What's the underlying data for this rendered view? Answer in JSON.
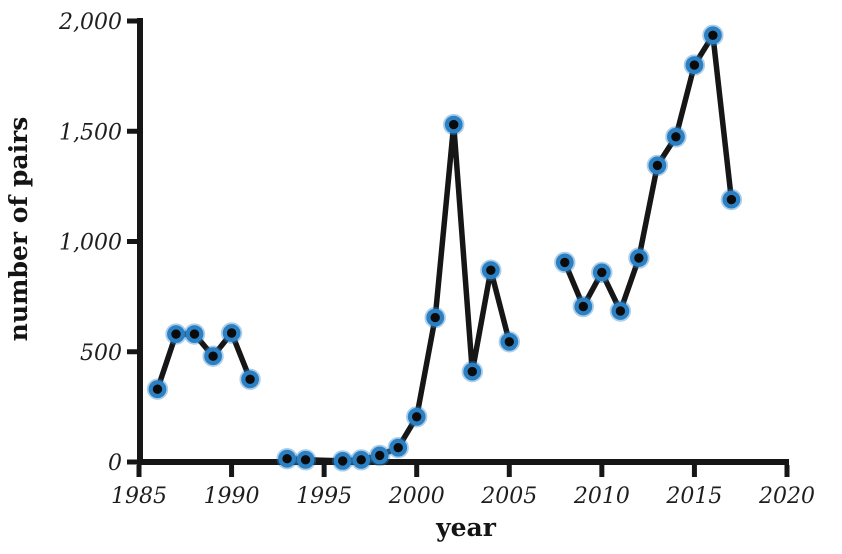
{
  "chart_data": {
    "type": "line",
    "title": "",
    "xlabel": "year",
    "ylabel": "number of pairs",
    "xlim": [
      1985,
      2020
    ],
    "ylim": [
      0,
      2000
    ],
    "grid": false,
    "legend": null,
    "x_ticks": [
      1985,
      1990,
      1995,
      2000,
      2005,
      2010,
      2015,
      2020
    ],
    "x_tick_labels": [
      "1985",
      "1990",
      "1995",
      "2000",
      "2005",
      "2010",
      "2015",
      "2020"
    ],
    "y_ticks": [
      0,
      500,
      1000,
      1500,
      2000
    ],
    "y_tick_labels": [
      "0",
      "500",
      "1,000",
      "1,500",
      "2,000"
    ],
    "line_color": "#161616",
    "marker": {
      "shape": "circle",
      "fill": "#0b0b0b",
      "ring": "#2b80c4"
    },
    "segments": [
      {
        "name": "1986-1991",
        "points": [
          [
            1986,
            330
          ],
          [
            1987,
            580
          ],
          [
            1988,
            580
          ],
          [
            1989,
            480
          ],
          [
            1990,
            585
          ],
          [
            1991,
            375
          ]
        ]
      },
      {
        "name": "1993-2005",
        "points": [
          [
            1993,
            15
          ],
          [
            1994,
            10
          ],
          [
            1996,
            5
          ],
          [
            1997,
            10
          ],
          [
            1998,
            30
          ],
          [
            1999,
            65
          ],
          [
            2000,
            205
          ],
          [
            2001,
            655
          ],
          [
            2002,
            1530
          ],
          [
            2003,
            410
          ],
          [
            2004,
            870
          ],
          [
            2005,
            545
          ]
        ]
      },
      {
        "name": "2008-2017",
        "points": [
          [
            2008,
            905
          ],
          [
            2009,
            705
          ],
          [
            2010,
            860
          ],
          [
            2011,
            685
          ],
          [
            2012,
            925
          ],
          [
            2013,
            1345
          ],
          [
            2014,
            1475
          ],
          [
            2015,
            1800
          ],
          [
            2016,
            1935
          ],
          [
            2017,
            1190
          ]
        ]
      }
    ]
  }
}
